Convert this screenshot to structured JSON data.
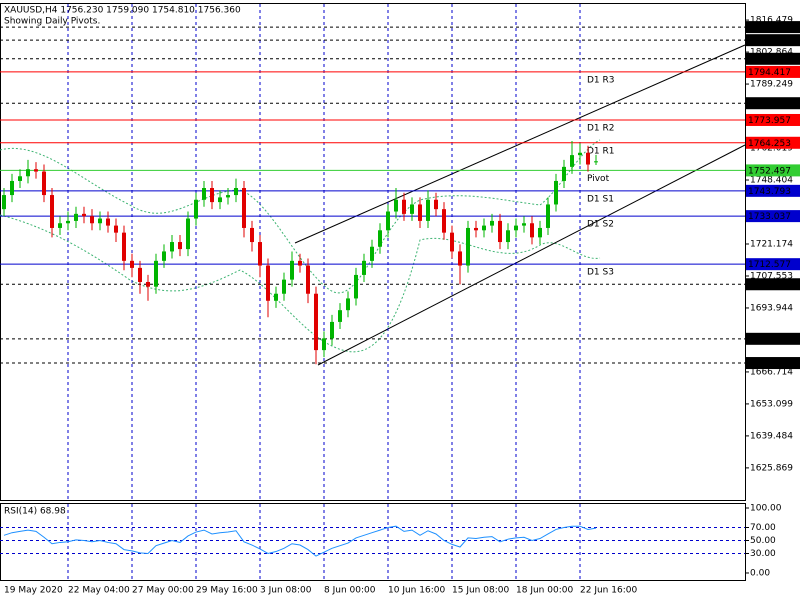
{
  "chart_data": {
    "type": "candlestick",
    "title": "XAUUSD,H4  1756.230 1759.090 1754.810 1756.360",
    "subtitle": "Showing Daily Pivots.",
    "colors": {
      "up": "#00b400",
      "down": "#e00000"
    },
    "categories": [
      "19 May 2020",
      null,
      null,
      null,
      null,
      null,
      null,
      null,
      "22 May 04:00",
      null,
      null,
      null,
      null,
      null,
      null,
      null,
      "27 May 00:00",
      null,
      null,
      null,
      null,
      null,
      null,
      null,
      "29 May 16:00",
      null,
      null,
      null,
      null,
      null,
      null,
      null,
      "3 Jun 08:00",
      null,
      null,
      null,
      null,
      null,
      null,
      null,
      "8 Jun 00:00",
      null,
      null,
      null,
      null,
      null,
      null,
      null,
      "10 Jun 16:00",
      null,
      null,
      null,
      null,
      null,
      null,
      null,
      "15 Jun 08:00",
      null,
      null,
      null,
      null,
      null,
      null,
      null,
      "18 Jun 00:00",
      null,
      null,
      null,
      null,
      null,
      null,
      null,
      "22 Jun 16:00",
      null,
      null
    ],
    "ohlc": [
      [
        1736,
        1745,
        1733,
        1742
      ],
      [
        1742,
        1751,
        1739,
        1748
      ],
      [
        1748,
        1753,
        1745,
        1750
      ],
      [
        1750,
        1757,
        1747,
        1753
      ],
      [
        1753,
        1756,
        1749,
        1752
      ],
      [
        1752,
        1755,
        1739,
        1742
      ],
      [
        1742,
        1745,
        1724,
        1728
      ],
      [
        1728,
        1733,
        1725,
        1730
      ],
      [
        1730,
        1735,
        1727,
        1731
      ],
      [
        1731,
        1737,
        1728,
        1734
      ],
      [
        1734,
        1737,
        1730,
        1733
      ],
      [
        1733,
        1736,
        1727,
        1730
      ],
      [
        1730,
        1735,
        1727,
        1732
      ],
      [
        1732,
        1735,
        1726,
        1729
      ],
      [
        1729,
        1732,
        1722,
        1726
      ],
      [
        1726,
        1729,
        1710,
        1714
      ],
      [
        1714,
        1717,
        1707,
        1711
      ],
      [
        1711,
        1714,
        1700,
        1705
      ],
      [
        1705,
        1708,
        1697,
        1703
      ],
      [
        1703,
        1717,
        1700,
        1714
      ],
      [
        1714,
        1721,
        1711,
        1718
      ],
      [
        1718,
        1725,
        1715,
        1722
      ],
      [
        1722,
        1725,
        1716,
        1719
      ],
      [
        1719,
        1735,
        1716,
        1732
      ],
      [
        1732,
        1743,
        1729,
        1740
      ],
      [
        1740,
        1748,
        1737,
        1745
      ],
      [
        1745,
        1748,
        1736,
        1739
      ],
      [
        1739,
        1744,
        1736,
        1741
      ],
      [
        1741,
        1745,
        1738,
        1742
      ],
      [
        1742,
        1749,
        1739,
        1745
      ],
      [
        1745,
        1748,
        1724,
        1728
      ],
      [
        1728,
        1731,
        1718,
        1722
      ],
      [
        1722,
        1725,
        1707,
        1712
      ],
      [
        1712,
        1715,
        1690,
        1697
      ],
      [
        1697,
        1703,
        1694,
        1700
      ],
      [
        1700,
        1709,
        1697,
        1706
      ],
      [
        1706,
        1718,
        1703,
        1714
      ],
      [
        1714,
        1717,
        1709,
        1712
      ],
      [
        1712,
        1715,
        1696,
        1700
      ],
      [
        1700,
        1703,
        1670,
        1676
      ],
      [
        1676,
        1684,
        1673,
        1681
      ],
      [
        1681,
        1691,
        1678,
        1688
      ],
      [
        1688,
        1696,
        1685,
        1693
      ],
      [
        1693,
        1701,
        1690,
        1698
      ],
      [
        1698,
        1711,
        1695,
        1708
      ],
      [
        1708,
        1717,
        1705,
        1714
      ],
      [
        1714,
        1723,
        1711,
        1720
      ],
      [
        1720,
        1730,
        1717,
        1727
      ],
      [
        1727,
        1738,
        1724,
        1735
      ],
      [
        1735,
        1745,
        1732,
        1740
      ],
      [
        1740,
        1743,
        1731,
        1734
      ],
      [
        1734,
        1741,
        1731,
        1738
      ],
      [
        1738,
        1741,
        1728,
        1731
      ],
      [
        1731,
        1744,
        1728,
        1740
      ],
      [
        1740,
        1743,
        1733,
        1736
      ],
      [
        1736,
        1739,
        1723,
        1726
      ],
      [
        1726,
        1729,
        1715,
        1718
      ],
      [
        1718,
        1721,
        1704,
        1712
      ],
      [
        1712,
        1731,
        1709,
        1728
      ],
      [
        1728,
        1731,
        1724,
        1727
      ],
      [
        1727,
        1732,
        1724,
        1729
      ],
      [
        1729,
        1734,
        1726,
        1731
      ],
      [
        1731,
        1734,
        1719,
        1722
      ],
      [
        1722,
        1730,
        1719,
        1727
      ],
      [
        1727,
        1732,
        1724,
        1729
      ],
      [
        1729,
        1733,
        1726,
        1730
      ],
      [
        1730,
        1733,
        1721,
        1724
      ],
      [
        1724,
        1731,
        1721,
        1728
      ],
      [
        1728,
        1741,
        1725,
        1738
      ],
      [
        1738,
        1751,
        1735,
        1748
      ],
      [
        1748,
        1757,
        1745,
        1754
      ],
      [
        1754,
        1765,
        1751,
        1759
      ],
      [
        1759,
        1764,
        1755,
        1760
      ],
      [
        1760,
        1763,
        1752,
        1755
      ],
      [
        1756.23,
        1759.09,
        1754.81,
        1756.36
      ]
    ],
    "ylim": [
      1612.2,
      1822.9
    ],
    "yticks": [
      1816.479,
      1802.864,
      1789.249,
      1762.019,
      1748.404,
      1721.174,
      1707.553,
      1693.944,
      1666.714,
      1653.099,
      1639.484,
      1625.869
    ],
    "levels": [
      {
        "value": 1813.492,
        "color": "#000000",
        "style": "dashed"
      },
      {
        "value": 1807.929,
        "color": "#000000",
        "style": "dashed"
      },
      {
        "value": 1800,
        "label": "1800.000",
        "color": "#000000",
        "style": "dashed"
      },
      {
        "value": 1794.417,
        "color": "#ff0000",
        "style": "solid",
        "text": "D1 R3"
      },
      {
        "value": 1781.095,
        "color": "#000000",
        "style": "dashed"
      },
      {
        "value": 1773.957,
        "color": "#ff0000",
        "style": "solid",
        "text": "D1 R2"
      },
      {
        "value": 1764.253,
        "color": "#ff0000",
        "style": "solid",
        "text": "D1 R1"
      },
      {
        "value": 1752.497,
        "color": "#32cd32",
        "style": "solid",
        "text": "Pivot"
      },
      {
        "value": 1743.793,
        "color": "#0000cd",
        "style": "solid",
        "text": "D1 S1"
      },
      {
        "value": 1733.037,
        "color": "#0000cd",
        "style": "solid",
        "text": "D1 S2"
      },
      {
        "value": 1712.577,
        "color": "#0000cd",
        "style": "solid",
        "text": "D1 S3"
      },
      {
        "value": 1704.034,
        "color": "#000000",
        "style": "dashed"
      },
      {
        "value": 1680.81,
        "label": "1680.810",
        "color": "#000000",
        "style": "dashed"
      },
      {
        "value": 1670.494,
        "color": "#000000",
        "style": "dashed"
      }
    ],
    "rsi": {
      "title": "RSI(14) 68.98",
      "color": "#1e90ff",
      "values": [
        58,
        62,
        64,
        66,
        64,
        55,
        45,
        47,
        48,
        51,
        50,
        48,
        50,
        47,
        45,
        36,
        34,
        31,
        30,
        42,
        46,
        50,
        47,
        57,
        63,
        66,
        60,
        62,
        63,
        65,
        48,
        43,
        37,
        30,
        33,
        38,
        45,
        43,
        36,
        26,
        32,
        38,
        42,
        46,
        54,
        58,
        62,
        66,
        70,
        72,
        64,
        66,
        58,
        65,
        60,
        50,
        44,
        40,
        54,
        53,
        55,
        56,
        48,
        52,
        54,
        55,
        50,
        53,
        60,
        67,
        70,
        72,
        72,
        67,
        68.98
      ],
      "ylim": [
        -10.8,
        107.7
      ],
      "yticks": [
        {
          "value": 100,
          "label": "100.00"
        },
        {
          "value": 70,
          "label": "70.00"
        },
        {
          "value": 50,
          "label": "50.00"
        },
        {
          "value": 30,
          "label": "30.00"
        },
        {
          "value": 0,
          "label": "0.00"
        }
      ],
      "levels": [
        70,
        50,
        30
      ]
    }
  }
}
